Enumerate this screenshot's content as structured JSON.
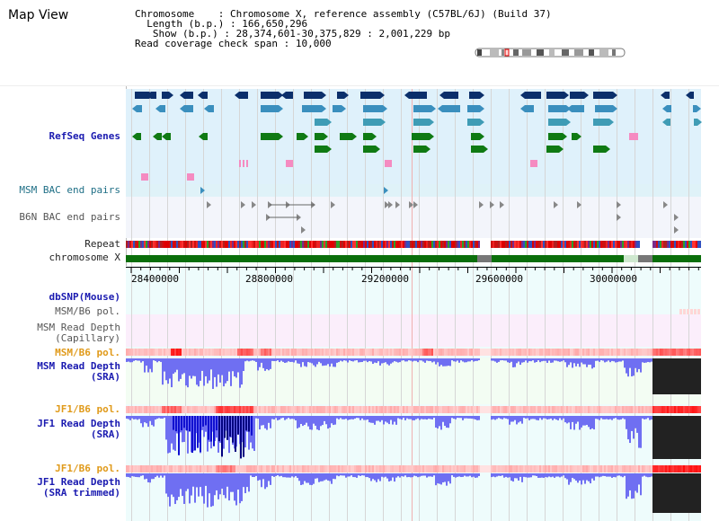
{
  "page": {
    "title": "Map View",
    "info": {
      "chromosome_key": "Chromosome",
      "chromosome_value": "Chromosome X, reference assembly (C57BL/6J) (Build 37)",
      "length_key": "Length (b.p.)",
      "length_value": "166,650,296",
      "show_key": "Show (b.p.)",
      "show_value": "28,374,601-30,375,829 : 2,001,229 bp",
      "span_key": "Read coverage check span",
      "span_value": "10,000"
    }
  },
  "tracks": {
    "refseq": "RefSeq Genes",
    "msm_bac": "MSM BAC end pairs",
    "b6n_bac": "B6N BAC end pairs",
    "repeat": "Repeat",
    "chromosome": "chromosome X",
    "dbsnp": "dbSNP(Mouse)",
    "msm_b6_pol_1": "MSM/B6 pol.",
    "msm_depth_cap_1": "MSM Read Depth",
    "msm_depth_cap_2": "(Capillary)",
    "msm_b6_pol_2": "MSM/B6 pol.",
    "msm_depth_sra_1": "MSM Read Depth",
    "msm_depth_sra_2": "(SRA)",
    "jf1_b6_pol_1": "JF1/B6 pol.",
    "jf1_depth_sra_1": "JF1 Read Depth",
    "jf1_depth_sra_2": "(SRA)",
    "jf1_b6_pol_2": "JF1/B6 pol.",
    "jf1_depth_trim_1": "JF1 Read Depth",
    "jf1_depth_trim_2": "(SRA trimmed)"
  },
  "axis": {
    "ticks": [
      "28400000",
      "28800000",
      "29200000",
      "29600000",
      "30000000"
    ]
  },
  "colors": {
    "blue_band": "#dff1fb",
    "gene_dark": "#0b2f6b",
    "gene_mid": "#3a8fbe",
    "gene_light": "#3f9cb5",
    "gene_green": "#0f7a13",
    "gene_pink": "#f58bc1",
    "chromosome_green": "#0a6e0a",
    "depth_blue": "#6f6ff2",
    "depth_dark": "#1010d0",
    "no_data": "#222222"
  }
}
